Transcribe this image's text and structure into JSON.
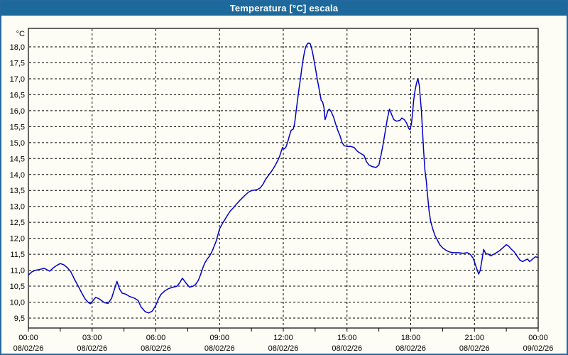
{
  "window": {
    "title": "Temperatura [°C] escala"
  },
  "colors": {
    "titlebar_bg": "#1E699B",
    "titlebar_text": "#FFFFFF",
    "window_border": "#2468A0",
    "window_bg": "#FDFDF5",
    "plot_bg": "#FDFDF5",
    "grid_color": "#000000",
    "axis_color": "#000000",
    "line_color": "#0000CC"
  },
  "chart_data": {
    "type": "line",
    "title": "Temperatura [°C] escala",
    "series_name": "Temperatura",
    "ylabel_unit": "°C",
    "grid": "dashed",
    "legend": "none",
    "ylim": [
      9.5,
      18.0
    ],
    "y_tick_step": 0.5,
    "xlim_minutes": [
      0,
      1440
    ],
    "x_minor_tick_minutes": 90,
    "y_ticks": [
      {
        "label": "18,0",
        "value": 18.0
      },
      {
        "label": "17,5",
        "value": 17.5
      },
      {
        "label": "17,0",
        "value": 17.0
      },
      {
        "label": "16,5",
        "value": 16.5
      },
      {
        "label": "16,0",
        "value": 16.0
      },
      {
        "label": "15,5",
        "value": 15.5
      },
      {
        "label": "15,0",
        "value": 15.0
      },
      {
        "label": "14,5",
        "value": 14.5
      },
      {
        "label": "14,0",
        "value": 14.0
      },
      {
        "label": "13,5",
        "value": 13.5
      },
      {
        "label": "13,0",
        "value": 13.0
      },
      {
        "label": "12,5",
        "value": 12.5
      },
      {
        "label": "12,0",
        "value": 12.0
      },
      {
        "label": "11,5",
        "value": 11.5
      },
      {
        "label": "11,0",
        "value": 11.0
      },
      {
        "label": "10,5",
        "value": 10.5
      },
      {
        "label": "10,0",
        "value": 10.0
      },
      {
        "label": "9,5",
        "value": 9.5
      }
    ],
    "x_ticks": [
      {
        "minutes": 0,
        "time": "00:00",
        "date": "08/02/26"
      },
      {
        "minutes": 180,
        "time": "03:00",
        "date": "08/02/26"
      },
      {
        "minutes": 360,
        "time": "06:00",
        "date": "08/02/26"
      },
      {
        "minutes": 540,
        "time": "09:00",
        "date": "08/02/26"
      },
      {
        "minutes": 720,
        "time": "12:00",
        "date": "08/02/26"
      },
      {
        "minutes": 900,
        "time": "15:00",
        "date": "08/02/26"
      },
      {
        "minutes": 1080,
        "time": "18:00",
        "date": "08/02/26"
      },
      {
        "minutes": 1260,
        "time": "21:00",
        "date": "08/02/26"
      },
      {
        "minutes": 1440,
        "time": "00:00",
        "date": "09/02/26"
      }
    ],
    "points": [
      [
        0,
        10.85
      ],
      [
        10,
        10.95
      ],
      [
        20,
        11.0
      ],
      [
        30,
        11.02
      ],
      [
        45,
        11.06
      ],
      [
        55,
        11.0
      ],
      [
        60,
        10.97
      ],
      [
        70,
        11.07
      ],
      [
        80,
        11.15
      ],
      [
        90,
        11.21
      ],
      [
        100,
        11.17
      ],
      [
        110,
        11.08
      ],
      [
        120,
        10.95
      ],
      [
        130,
        10.72
      ],
      [
        140,
        10.52
      ],
      [
        150,
        10.3
      ],
      [
        160,
        10.1
      ],
      [
        170,
        9.98
      ],
      [
        175,
        9.95
      ],
      [
        185,
        10.08
      ],
      [
        190,
        10.15
      ],
      [
        200,
        10.1
      ],
      [
        215,
        9.98
      ],
      [
        225,
        9.96
      ],
      [
        235,
        10.12
      ],
      [
        240,
        10.3
      ],
      [
        250,
        10.65
      ],
      [
        258,
        10.4
      ],
      [
        265,
        10.28
      ],
      [
        275,
        10.25
      ],
      [
        285,
        10.18
      ],
      [
        300,
        10.12
      ],
      [
        310,
        10.05
      ],
      [
        318,
        9.85
      ],
      [
        330,
        9.7
      ],
      [
        340,
        9.66
      ],
      [
        350,
        9.72
      ],
      [
        360,
        9.9
      ],
      [
        368,
        10.12
      ],
      [
        375,
        10.25
      ],
      [
        385,
        10.35
      ],
      [
        395,
        10.42
      ],
      [
        405,
        10.46
      ],
      [
        420,
        10.5
      ],
      [
        428,
        10.62
      ],
      [
        435,
        10.75
      ],
      [
        445,
        10.6
      ],
      [
        455,
        10.47
      ],
      [
        465,
        10.5
      ],
      [
        472,
        10.55
      ],
      [
        480,
        10.68
      ],
      [
        486,
        10.85
      ],
      [
        492,
        11.05
      ],
      [
        498,
        11.22
      ],
      [
        505,
        11.35
      ],
      [
        512,
        11.45
      ],
      [
        520,
        11.62
      ],
      [
        530,
        11.9
      ],
      [
        540,
        12.3
      ],
      [
        550,
        12.5
      ],
      [
        560,
        12.68
      ],
      [
        570,
        12.85
      ],
      [
        580,
        12.97
      ],
      [
        590,
        13.1
      ],
      [
        600,
        13.22
      ],
      [
        612,
        13.35
      ],
      [
        622,
        13.45
      ],
      [
        632,
        13.5
      ],
      [
        645,
        13.52
      ],
      [
        655,
        13.58
      ],
      [
        662,
        13.68
      ],
      [
        670,
        13.85
      ],
      [
        680,
        14.0
      ],
      [
        690,
        14.15
      ],
      [
        698,
        14.3
      ],
      [
        705,
        14.45
      ],
      [
        710,
        14.58
      ],
      [
        714,
        14.72
      ],
      [
        718,
        14.85
      ],
      [
        722,
        14.8
      ],
      [
        727,
        14.85
      ],
      [
        732,
        15.0
      ],
      [
        738,
        15.25
      ],
      [
        742,
        15.38
      ],
      [
        748,
        15.42
      ],
      [
        752,
        15.6
      ],
      [
        756,
        15.95
      ],
      [
        760,
        16.3
      ],
      [
        764,
        16.65
      ],
      [
        768,
        16.95
      ],
      [
        772,
        17.3
      ],
      [
        776,
        17.6
      ],
      [
        780,
        17.85
      ],
      [
        784,
        18.02
      ],
      [
        790,
        18.12
      ],
      [
        796,
        18.1
      ],
      [
        800,
        17.95
      ],
      [
        804,
        17.75
      ],
      [
        808,
        17.5
      ],
      [
        812,
        17.25
      ],
      [
        816,
        16.98
      ],
      [
        820,
        16.75
      ],
      [
        824,
        16.5
      ],
      [
        827,
        16.32
      ],
      [
        831,
        16.28
      ],
      [
        835,
        16.1
      ],
      [
        838,
        15.72
      ],
      [
        842,
        15.85
      ],
      [
        846,
        16.0
      ],
      [
        850,
        16.05
      ],
      [
        856,
        15.95
      ],
      [
        862,
        15.8
      ],
      [
        868,
        15.58
      ],
      [
        874,
        15.38
      ],
      [
        880,
        15.22
      ],
      [
        886,
        15.0
      ],
      [
        892,
        14.9
      ],
      [
        900,
        14.88
      ],
      [
        910,
        14.88
      ],
      [
        920,
        14.85
      ],
      [
        930,
        14.72
      ],
      [
        940,
        14.65
      ],
      [
        948,
        14.6
      ],
      [
        955,
        14.4
      ],
      [
        962,
        14.3
      ],
      [
        970,
        14.25
      ],
      [
        982,
        14.22
      ],
      [
        990,
        14.3
      ],
      [
        996,
        14.6
      ],
      [
        1002,
        14.95
      ],
      [
        1008,
        15.35
      ],
      [
        1014,
        15.75
      ],
      [
        1020,
        16.05
      ],
      [
        1026,
        15.88
      ],
      [
        1032,
        15.72
      ],
      [
        1040,
        15.67
      ],
      [
        1050,
        15.7
      ],
      [
        1055,
        15.77
      ],
      [
        1062,
        15.72
      ],
      [
        1068,
        15.62
      ],
      [
        1074,
        15.45
      ],
      [
        1078,
        15.4
      ],
      [
        1082,
        15.6
      ],
      [
        1085,
        15.9
      ],
      [
        1088,
        16.3
      ],
      [
        1092,
        16.62
      ],
      [
        1096,
        16.85
      ],
      [
        1100,
        17.0
      ],
      [
        1104,
        16.8
      ],
      [
        1107,
        16.4
      ],
      [
        1110,
        16.0
      ],
      [
        1113,
        15.4
      ],
      [
        1116,
        14.8
      ],
      [
        1120,
        14.15
      ],
      [
        1124,
        13.8
      ],
      [
        1128,
        13.3
      ],
      [
        1132,
        12.85
      ],
      [
        1136,
        12.55
      ],
      [
        1142,
        12.3
      ],
      [
        1148,
        12.1
      ],
      [
        1155,
        11.95
      ],
      [
        1162,
        11.8
      ],
      [
        1170,
        11.7
      ],
      [
        1180,
        11.62
      ],
      [
        1190,
        11.57
      ],
      [
        1200,
        11.55
      ],
      [
        1215,
        11.55
      ],
      [
        1228,
        11.53
      ],
      [
        1240,
        11.55
      ],
      [
        1248,
        11.5
      ],
      [
        1256,
        11.38
      ],
      [
        1262,
        11.2
      ],
      [
        1268,
        11.0
      ],
      [
        1272,
        10.88
      ],
      [
        1276,
        10.98
      ],
      [
        1281,
        11.3
      ],
      [
        1286,
        11.65
      ],
      [
        1292,
        11.52
      ],
      [
        1300,
        11.5
      ],
      [
        1306,
        11.45
      ],
      [
        1314,
        11.5
      ],
      [
        1322,
        11.55
      ],
      [
        1332,
        11.62
      ],
      [
        1342,
        11.72
      ],
      [
        1350,
        11.8
      ],
      [
        1356,
        11.76
      ],
      [
        1364,
        11.66
      ],
      [
        1372,
        11.58
      ],
      [
        1380,
        11.45
      ],
      [
        1388,
        11.32
      ],
      [
        1396,
        11.27
      ],
      [
        1404,
        11.32
      ],
      [
        1410,
        11.35
      ],
      [
        1416,
        11.27
      ],
      [
        1424,
        11.35
      ],
      [
        1432,
        11.42
      ],
      [
        1440,
        11.4
      ]
    ]
  }
}
